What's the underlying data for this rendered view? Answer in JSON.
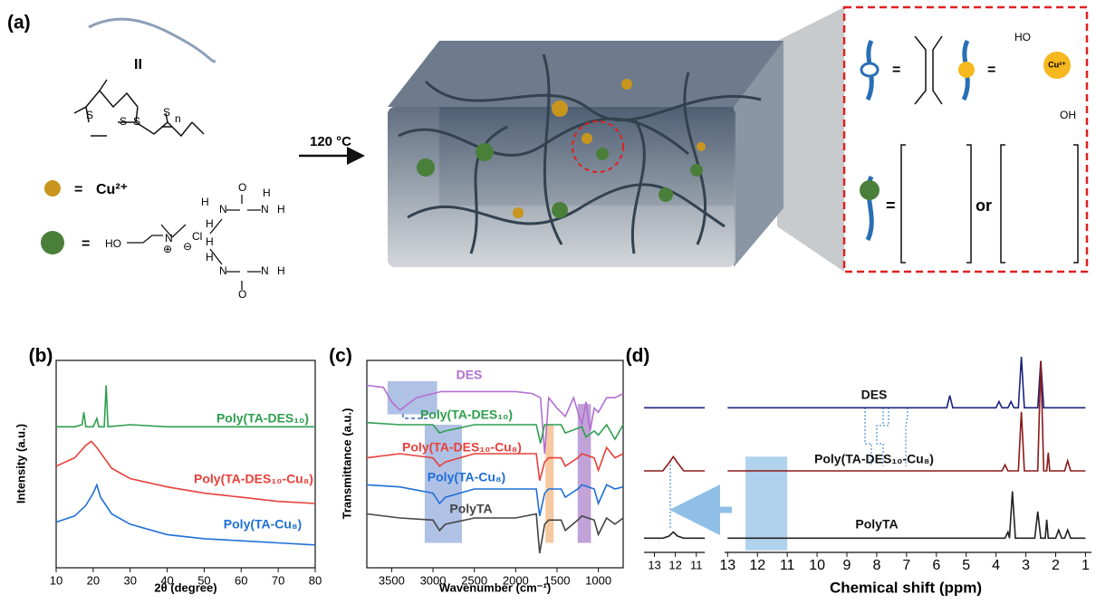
{
  "panel_a": {
    "label": "(a)",
    "arrow_label": "120 °C",
    "polymer_labels": [
      "II",
      "S",
      "S",
      "S",
      "S",
      "n"
    ],
    "legend": [
      "=",
      "Cu²⁺",
      "="
    ],
    "des_labels": [
      "HO",
      "N",
      "⊕",
      "Cl",
      "⊖",
      "H",
      "H",
      "N",
      "O",
      "N",
      "H",
      "H",
      "H",
      "N",
      "O",
      "N",
      "H",
      "H"
    ],
    "inset_labels": [
      "=",
      "=",
      "Cu²⁺",
      "HO",
      "OH",
      "=",
      "or"
    ]
  },
  "chart_data": [
    {
      "type": "line",
      "label": "(b)",
      "xlabel": "2θ (degree)",
      "ylabel": "Intensity (a.u.)",
      "xlim": [
        10,
        80
      ],
      "xticks": [
        10,
        20,
        30,
        40,
        50,
        60,
        70,
        80
      ],
      "ylim": [
        0,
        100
      ],
      "series": [
        {
          "name": "Poly(TA-DES₁₀)",
          "color": "#2e9e4f",
          "x": [
            10,
            15,
            17,
            17.5,
            18,
            20,
            21,
            21.5,
            23,
            23.5,
            24,
            30,
            40,
            50,
            60,
            70,
            80
          ],
          "values": [
            68,
            68,
            69,
            75,
            68,
            68,
            72,
            68,
            68,
            88,
            68,
            69,
            68,
            68,
            68,
            68,
            68
          ]
        },
        {
          "name": "Poly(TA-DES₁₀-Cu₈)",
          "color": "#e8403a",
          "x": [
            10,
            15,
            18,
            19.5,
            21,
            25,
            30,
            40,
            50,
            60,
            70,
            80
          ],
          "values": [
            49,
            53,
            59,
            61,
            58,
            48,
            43,
            39,
            36,
            34,
            32,
            31
          ]
        },
        {
          "name": "Poly(TA-Cu₈)",
          "color": "#1f6fd6",
          "x": [
            10,
            15,
            18,
            20,
            21,
            22,
            25,
            30,
            40,
            50,
            60,
            70,
            80
          ],
          "values": [
            22,
            25,
            30,
            36,
            40,
            34,
            26,
            21,
            16,
            14,
            13,
            12,
            11
          ]
        }
      ]
    },
    {
      "type": "line",
      "label": "(c)",
      "xlabel": "Wavenumber (cm⁻¹)",
      "ylabel": "Transmittance (a.u.)",
      "xlim": [
        3800,
        700
      ],
      "xticks": [
        3500,
        3000,
        2500,
        2000,
        1500,
        1000
      ],
      "ylim": [
        0,
        100
      ],
      "bands": [
        {
          "xlim": [
            3550,
            2950
          ],
          "ylim": [
            74,
            90
          ],
          "color": "#8fa6dc"
        },
        {
          "xlim": [
            3100,
            2650
          ],
          "ylim": [
            12,
            69
          ],
          "color": "#8fa6dc"
        },
        {
          "xlim": [
            1640,
            1540
          ],
          "ylim": [
            12,
            69
          ],
          "color": "#f4b27a"
        },
        {
          "xlim": [
            1250,
            1090
          ],
          "ylim": [
            12,
            79
          ],
          "color": "#a77bc9"
        }
      ],
      "series": [
        {
          "name": "DES",
          "color": "#b36fd1",
          "x": [
            3800,
            3600,
            3500,
            3400,
            3200,
            3000,
            2900,
            2500,
            2000,
            1800,
            1700,
            1650,
            1600,
            1500,
            1400,
            1300,
            1200,
            1150,
            1100,
            1050,
            1000,
            900,
            800,
            700
          ],
          "values": [
            88,
            87,
            80,
            76,
            82,
            84,
            85,
            85,
            85,
            84,
            82,
            55,
            82,
            77,
            73,
            82,
            69,
            80,
            66,
            77,
            75,
            82,
            82,
            84
          ]
        },
        {
          "name": "Poly(TA-DES₁₀)",
          "color": "#2e9e4f",
          "x": [
            3800,
            3400,
            3000,
            2920,
            2850,
            2500,
            2000,
            1750,
            1700,
            1650,
            1600,
            1450,
            1400,
            1200,
            1150,
            1050,
            1000,
            900,
            800,
            700
          ],
          "values": [
            70,
            69,
            69,
            65,
            66,
            69,
            69,
            69,
            60,
            69,
            69,
            69,
            65,
            68,
            63,
            66,
            64,
            69,
            62,
            69
          ]
        },
        {
          "name": "Poly(TA-DES₁₀-Cu₈)",
          "color": "#e8403a",
          "x": [
            3800,
            3400,
            3000,
            2920,
            2850,
            2500,
            2000,
            1750,
            1710,
            1650,
            1600,
            1450,
            1400,
            1250,
            1200,
            1050,
            1000,
            900,
            800,
            700
          ],
          "values": [
            53,
            55,
            53,
            49,
            51,
            55,
            55,
            55,
            42,
            51,
            53,
            53,
            49,
            53,
            55,
            53,
            47,
            58,
            53,
            55
          ]
        },
        {
          "name": "Poly(TA-Cu₈)",
          "color": "#1f6fd6",
          "x": [
            3800,
            3400,
            3000,
            2920,
            2850,
            2500,
            2000,
            1750,
            1710,
            1650,
            1600,
            1450,
            1400,
            1250,
            1200,
            1050,
            1000,
            900,
            800,
            700
          ],
          "values": [
            40,
            39,
            36,
            31,
            34,
            38,
            38,
            38,
            25,
            36,
            38,
            38,
            34,
            38,
            40,
            38,
            31,
            40,
            38,
            39
          ]
        },
        {
          "name": "PolyTA",
          "color": "#444444",
          "x": [
            3800,
            3400,
            3000,
            2920,
            2850,
            2500,
            2000,
            1750,
            1710,
            1650,
            1600,
            1450,
            1400,
            1250,
            1200,
            1050,
            1000,
            900,
            800,
            700
          ],
          "values": [
            26,
            24,
            23,
            18,
            21,
            24,
            24,
            26,
            7,
            21,
            23,
            23,
            18,
            23,
            25,
            23,
            16,
            24,
            21,
            24
          ]
        }
      ]
    },
    {
      "type": "line",
      "label": "(d)",
      "xlim": [
        13.5,
        10.6
      ],
      "xticks": [
        13,
        12,
        11
      ],
      "ylim": [
        0,
        100
      ],
      "series": [
        {
          "color": "#1a237e",
          "x": [
            13.5,
            10.6
          ],
          "values": [
            71,
            71
          ]
        },
        {
          "color": "#8b1a1a",
          "x": [
            13.5,
            12.6,
            12.3,
            12.1,
            11.9,
            11.6,
            10.6
          ],
          "values": [
            40,
            40,
            44,
            47,
            44,
            40,
            40
          ]
        },
        {
          "color": "#222222",
          "x": [
            13.5,
            12.6,
            12.3,
            12.1,
            11.9,
            11.6,
            10.6
          ],
          "values": [
            7,
            7,
            8,
            10,
            8,
            7,
            7
          ]
        }
      ]
    },
    {
      "type": "line",
      "xlabel": "Chemical shift (ppm)",
      "xlim": [
        13.1,
        0.8
      ],
      "xticks": [
        13,
        12,
        11,
        10,
        9,
        8,
        7,
        6,
        5,
        4,
        3,
        2,
        1
      ],
      "ylim": [
        0,
        100
      ],
      "bands": [
        {
          "xlim": [
            12.4,
            11.0
          ],
          "ylim": [
            1,
            47
          ],
          "color": "#8fbfe6"
        }
      ],
      "series": [
        {
          "name": "DES",
          "color": "#1a237e",
          "x": [
            13,
            5.65,
            5.55,
            5.45,
            4.0,
            3.9,
            3.8,
            3.6,
            3.5,
            3.4,
            3.25,
            3.15,
            3.05,
            2.6,
            2.5,
            2.4,
            1
          ],
          "values": [
            71,
            71,
            77,
            71,
            71,
            74,
            71,
            71,
            74,
            71,
            71,
            96,
            71,
            71,
            94,
            71,
            71
          ]
        },
        {
          "name": "Poly(TA-DES₁₀-Cu₈)",
          "color": "#8b1a1a",
          "x": [
            13,
            3.8,
            3.7,
            3.6,
            3.25,
            3.15,
            3.05,
            2.6,
            2.5,
            2.4,
            2.3,
            2.25,
            2.2,
            1.7,
            1.6,
            1.5,
            1
          ],
          "values": [
            40,
            40,
            43,
            40,
            40,
            69,
            40,
            40,
            94,
            40,
            40,
            49,
            40,
            40,
            45,
            40,
            40
          ]
        },
        {
          "name": "PolyTA",
          "color": "#222222",
          "x": [
            13,
            3.7,
            3.6,
            3.55,
            3.45,
            3.35,
            2.7,
            2.6,
            2.5,
            2.35,
            2.3,
            2.25,
            2.0,
            1.9,
            1.8,
            1.7,
            1.6,
            1.5,
            1
          ],
          "values": [
            7,
            7,
            10,
            7,
            30,
            7,
            7,
            20,
            7,
            7,
            16,
            7,
            7,
            11,
            7,
            7,
            11,
            7,
            7
          ]
        }
      ]
    }
  ]
}
